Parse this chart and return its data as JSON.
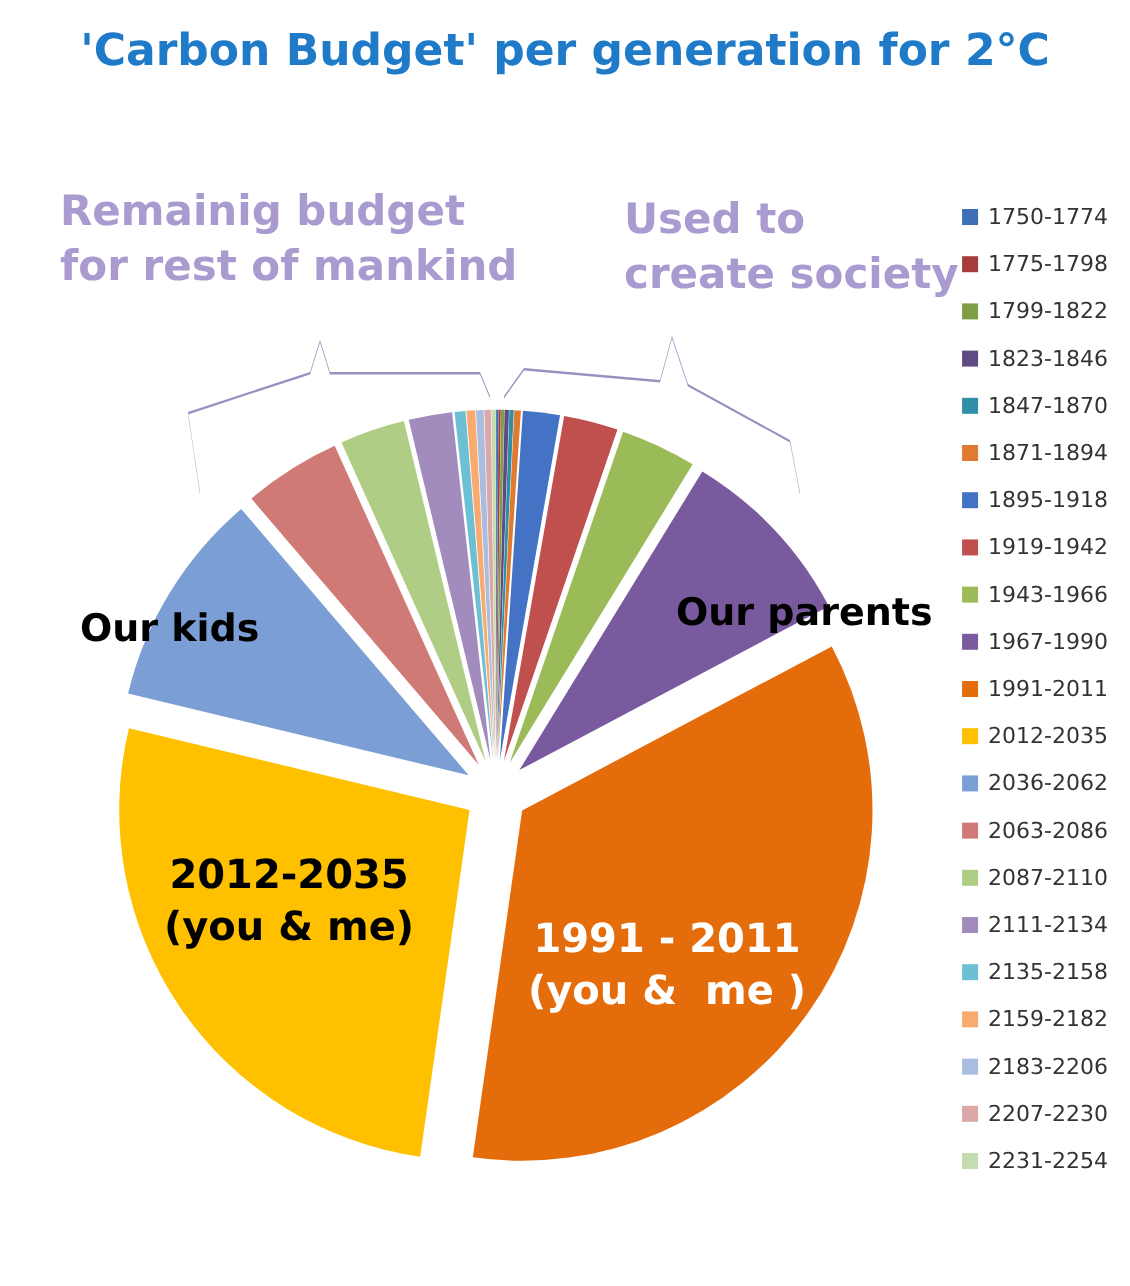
{
  "chart_data": {
    "type": "pie",
    "title": "'Carbon Budget' per generation for 2°C",
    "categories": [
      "1750-1774",
      "1775-1798",
      "1799-1822",
      "1823-1846",
      "1847-1870",
      "1871-1894",
      "1895-1918",
      "1919-1942",
      "1943-1966",
      "1967-1990",
      "1991-2011",
      "2012-2035",
      "2036-2062",
      "2063-2086",
      "2087-2110",
      "2111-2134",
      "2135-2158",
      "2159-2182",
      "2183-2206",
      "2207-2230",
      "2231-2254"
    ],
    "values": [
      0.1,
      0.1,
      0.15,
      0.2,
      0.2,
      0.3,
      1.7,
      2.5,
      3.5,
      8.5,
      35,
      26.5,
      10,
      4.5,
      3,
      2,
      0.5,
      0.4,
      0.35,
      0.3,
      0.2
    ],
    "colors": [
      "#3f6fb5",
      "#a83c3a",
      "#7f9f45",
      "#5f4a86",
      "#2f8fa6",
      "#e07a2e",
      "#4472c4",
      "#c0504d",
      "#9bbb59",
      "#7a5a9e",
      "#e46c0a",
      "#ffc000",
      "#7b9fd4",
      "#d07a78",
      "#afcd85",
      "#a18cbd",
      "#6dbfd4",
      "#f9ab6f",
      "#a9bde0",
      "#dba8a7",
      "#c5dcae"
    ],
    "legend": "right",
    "annotations": [
      "Remainig budget\nfor rest of mankind",
      "Used to\ncreate society",
      "Our kids",
      "Our parents",
      "2012-2035\n(you & me)",
      "1991 - 2011\n(you &  me )"
    ]
  }
}
